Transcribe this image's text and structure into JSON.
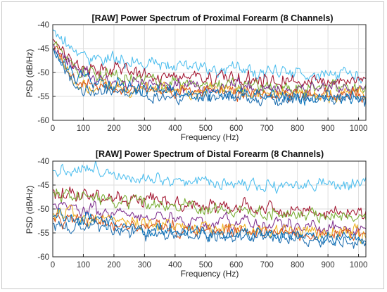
{
  "chart_data": [
    {
      "type": "line",
      "title": "[RAW] Power Spectrum of Proximal Forearm (8 Channels)",
      "xlabel": "Frequency (Hz)",
      "ylabel": "PSD (dB/Hz)",
      "xlim": [
        0,
        1024
      ],
      "ylim": [
        -60,
        -40
      ],
      "xticks": [
        0,
        100,
        200,
        300,
        400,
        500,
        600,
        700,
        800,
        900,
        1000
      ],
      "yticks": [
        -40,
        -45,
        -50,
        -55,
        -60
      ],
      "grid": true,
      "series": [
        {
          "color": "#4DBEEE",
          "values": [
            -41,
            -46.5,
            -47,
            -48,
            -48.5,
            -48.8,
            -49,
            -49.6,
            -50,
            -50,
            -50.3,
            -50.4,
            -50.6
          ]
        },
        {
          "color": "#A2142F",
          "values": [
            -43,
            -48.8,
            -49.5,
            -50,
            -50.5,
            -51,
            -51,
            -51.3,
            -51.5,
            -51.5,
            -52,
            -52,
            -52
          ]
        },
        {
          "color": "#77AC30",
          "values": [
            -44,
            -50,
            -50.7,
            -51.5,
            -52,
            -52.3,
            -52.5,
            -52.7,
            -53,
            -53,
            -53.2,
            -53.3,
            -53.3
          ]
        },
        {
          "color": "#7E2F8E",
          "values": [
            -44,
            -50.5,
            -51.3,
            -52,
            -52.5,
            -52.8,
            -53,
            -53.2,
            -53.4,
            -53.5,
            -53.6,
            -53.7,
            -53.8
          ]
        },
        {
          "color": "#EDB120",
          "values": [
            -45,
            -52.5,
            -52.9,
            -53.5,
            -53.8,
            -54,
            -54,
            -54,
            -54.2,
            -54.2,
            -54.3,
            -54.4,
            -54.4
          ]
        },
        {
          "color": "#D95319",
          "values": [
            -45,
            -52,
            -52.8,
            -53.3,
            -53.8,
            -54,
            -54.1,
            -54.3,
            -54.5,
            -54.5,
            -54.6,
            -54.7,
            -54.7
          ]
        },
        {
          "color": "#0072BD",
          "values": [
            -45,
            -51.5,
            -52.4,
            -53.3,
            -53.8,
            -54.2,
            -54.5,
            -54.8,
            -55,
            -55.2,
            -55.3,
            -55.5,
            -55.6
          ]
        },
        {
          "color": "#1F6FB0",
          "values": [
            -45,
            -53.5,
            -54,
            -54.5,
            -54.8,
            -55,
            -55,
            -55.2,
            -55.3,
            -55.4,
            -55.5,
            -55.5,
            -55.6
          ]
        }
      ]
    },
    {
      "type": "line",
      "title": "[RAW] Power Spectrum of Distal Forearm (8 Channels)",
      "xlabel": "Frequency (Hz)",
      "ylabel": "PSD (dB/Hz)",
      "xlim": [
        0,
        1024
      ],
      "ylim": [
        -60,
        -40
      ],
      "xticks": [
        0,
        100,
        200,
        300,
        400,
        500,
        600,
        700,
        800,
        900,
        1000
      ],
      "yticks": [
        -40,
        -45,
        -50,
        -55,
        -60
      ],
      "grid": true,
      "series": [
        {
          "color": "#4DBEEE",
          "values": [
            -42,
            -41.5,
            -42,
            -43,
            -43.5,
            -44,
            -44.2,
            -44.5,
            -44.8,
            -45,
            -45,
            -45.2,
            -45.3
          ]
        },
        {
          "color": "#A2142F",
          "values": [
            -46,
            -47,
            -47.5,
            -48,
            -48.5,
            -49,
            -49.3,
            -49.6,
            -50,
            -50.3,
            -50.5,
            -50.7,
            -51
          ]
        },
        {
          "color": "#77AC30",
          "values": [
            -46.5,
            -47.5,
            -48,
            -48.8,
            -49.3,
            -49.7,
            -50,
            -50.4,
            -50.8,
            -51,
            -51.2,
            -51.5,
            -51.8
          ]
        },
        {
          "color": "#7E2F8E",
          "values": [
            -49,
            -49.5,
            -50.3,
            -51,
            -51.8,
            -52.3,
            -52.7,
            -53,
            -53.2,
            -53.4,
            -53.6,
            -53.8,
            -54
          ]
        },
        {
          "color": "#EDB120",
          "values": [
            -51,
            -51.5,
            -52,
            -52.8,
            -53.3,
            -53.7,
            -54,
            -54.2,
            -54.5,
            -54.7,
            -54.9,
            -55,
            -55.2
          ]
        },
        {
          "color": "#D95319",
          "values": [
            -52,
            -52.3,
            -52.8,
            -53.5,
            -54,
            -54.3,
            -54.6,
            -54.8,
            -55,
            -55.2,
            -55.4,
            -55.5,
            -55.6
          ]
        },
        {
          "color": "#0072BD",
          "values": [
            -51.5,
            -52,
            -52.8,
            -53.6,
            -54.2,
            -54.7,
            -55,
            -55.3,
            -55.5,
            -55.7,
            -55.9,
            -56,
            -56.2
          ]
        },
        {
          "color": "#1F6FB0",
          "values": [
            -53,
            -53.5,
            -54,
            -54.5,
            -55,
            -55.3,
            -55.6,
            -55.9,
            -56.1,
            -56.3,
            -56.5,
            -56.7,
            -56.9
          ]
        }
      ]
    }
  ]
}
